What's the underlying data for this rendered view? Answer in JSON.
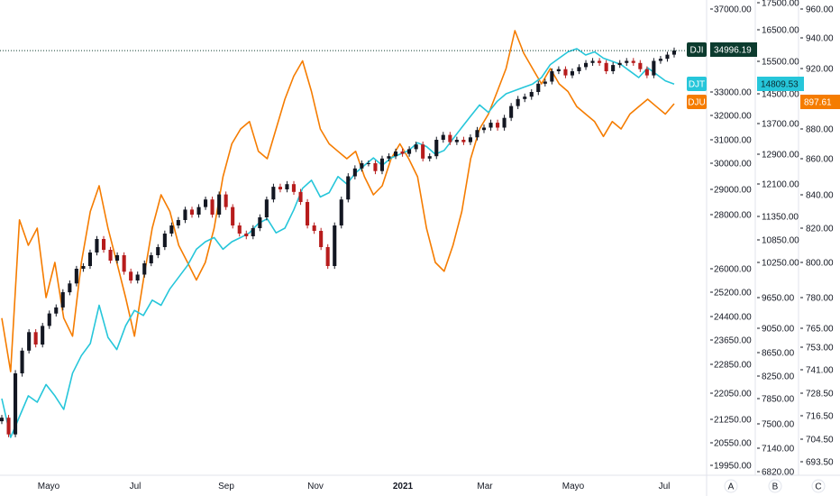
{
  "chart_data": {
    "type": "line",
    "x_labels": [
      "Mayo",
      "Jul",
      "Sep",
      "Nov",
      "2021",
      "Mar",
      "Mayo",
      "Jul"
    ],
    "x_labels_bold": [
      "2021"
    ],
    "axes": {
      "dji": {
        "ticks": [
          "37000.00",
          "33000.00",
          "32000.00",
          "31000.00",
          "30000.00",
          "29000.00",
          "28000.00",
          "26000.00",
          "25200.00",
          "24400.00",
          "23650.00",
          "22850.00",
          "22050.00",
          "21250.00",
          "20550.00",
          "19950.00"
        ],
        "tick_values": [
          37000,
          33000,
          32000,
          31000,
          30000,
          29000,
          28000,
          26000,
          25200,
          24400,
          23650,
          22850,
          22050,
          21250,
          20550,
          19950
        ]
      },
      "djt": {
        "ticks": [
          "17500.00",
          "16500.00",
          "15500.00",
          "14500.00",
          "13700.00",
          "12900.00",
          "12100.00",
          "11350.00",
          "10850.00",
          "10250.00",
          "9650.00",
          "9050.00",
          "8650.00",
          "8250.00",
          "7850.00",
          "7500.00",
          "7140.00",
          "6820.00"
        ],
        "tick_values": [
          17500,
          16500,
          15500,
          14500,
          13700,
          12900,
          12100,
          11350,
          10850,
          10250,
          9650,
          9050,
          8650,
          8250,
          7850,
          7500,
          7140,
          6820
        ]
      },
      "dju": {
        "ticks": [
          "960.00",
          "940.00",
          "920.00",
          "900.00",
          "880.00",
          "860.00",
          "840.00",
          "820.00",
          "800.00",
          "780.00",
          "765.00",
          "753.00",
          "741.00",
          "728.50",
          "716.50",
          "704.50",
          "693.50"
        ],
        "tick_values": [
          960,
          940,
          920,
          900,
          880,
          860,
          840,
          820,
          800,
          780,
          765,
          753,
          741,
          728.5,
          716.5,
          704.5,
          693.5
        ]
      }
    },
    "series": [
      {
        "name": "DJI",
        "style": "candlestick",
        "last_value": "34996.19",
        "close": [
          21300,
          20800,
          22600,
          23300,
          23900,
          23500,
          24100,
          24500,
          24700,
          25200,
          25500,
          26000,
          26100,
          26600,
          27100,
          26700,
          26300,
          26500,
          25900,
          25600,
          25800,
          26200,
          26500,
          26800,
          27300,
          27600,
          27800,
          28200,
          28000,
          28300,
          28600,
          28000,
          28800,
          28300,
          27600,
          27300,
          27200,
          27500,
          27900,
          28600,
          29100,
          29000,
          29200,
          28900,
          28500,
          27600,
          27400,
          26800,
          26100,
          27600,
          28600,
          29500,
          29800,
          30000,
          30000,
          29700,
          30200,
          30300,
          30500,
          30400,
          30600,
          30800,
          30200,
          30300,
          31000,
          31200,
          30900,
          31000,
          30900,
          31100,
          31400,
          31500,
          31700,
          31500,
          31900,
          32400,
          32700,
          32800,
          33000,
          33400,
          33500,
          34000,
          34100,
          33800,
          34000,
          34200,
          34400,
          34500,
          34400,
          34000,
          34300,
          34400,
          34500,
          34400,
          34100,
          33800,
          34500,
          34600,
          34800,
          35000
        ]
      },
      {
        "name": "DJT",
        "style": "line",
        "color": "#26c6da",
        "last_value": "14809.53",
        "values": [
          7850,
          7300,
          7600,
          7900,
          7800,
          8100,
          7900,
          7700,
          8300,
          8600,
          8800,
          9500,
          8900,
          8700,
          9100,
          9400,
          9300,
          9600,
          9500,
          9800,
          10000,
          10200,
          10600,
          10800,
          10900,
          10600,
          10800,
          10900,
          11000,
          11200,
          11300,
          11000,
          11100,
          11500,
          12000,
          12200,
          11800,
          11900,
          12300,
          12100,
          12400,
          12600,
          12800,
          12600,
          12800,
          12900,
          13000,
          13200,
          13100,
          12900,
          13000,
          13300,
          13600,
          13900,
          14200,
          14000,
          14300,
          14500,
          14600,
          14700,
          14800,
          15000,
          15400,
          15600,
          15800,
          15900,
          15700,
          15800,
          15600,
          15500,
          15400,
          15200,
          15000,
          15300,
          15100,
          14900,
          14800
        ]
      },
      {
        "name": "DJU",
        "style": "line",
        "color": "#f57c00",
        "last_value": "897.61",
        "values": [
          770,
          740,
          825,
          810,
          820,
          780,
          800,
          770,
          760,
          800,
          830,
          845,
          820,
          800,
          780,
          760,
          790,
          820,
          840,
          830,
          810,
          800,
          790,
          800,
          820,
          850,
          870,
          880,
          885,
          865,
          860,
          880,
          900,
          915,
          925,
          905,
          880,
          870,
          865,
          860,
          865,
          850,
          840,
          845,
          860,
          870,
          860,
          850,
          820,
          800,
          795,
          810,
          830,
          860,
          880,
          890,
          905,
          920,
          945,
          930,
          920,
          910,
          920,
          910,
          905,
          895,
          890,
          885,
          875,
          885,
          880,
          890,
          895,
          900,
          895,
          890,
          897
        ]
      }
    ],
    "scale_buttons": [
      "A",
      "B",
      "C"
    ],
    "colors": {
      "dji_badge": "#0c3b2e",
      "djt": "#26c6da",
      "dju": "#f57c00",
      "candle_up": "#131722",
      "candle_down": "#b71c1c",
      "background": "#ffffff",
      "grid": "#e0e3eb"
    }
  }
}
